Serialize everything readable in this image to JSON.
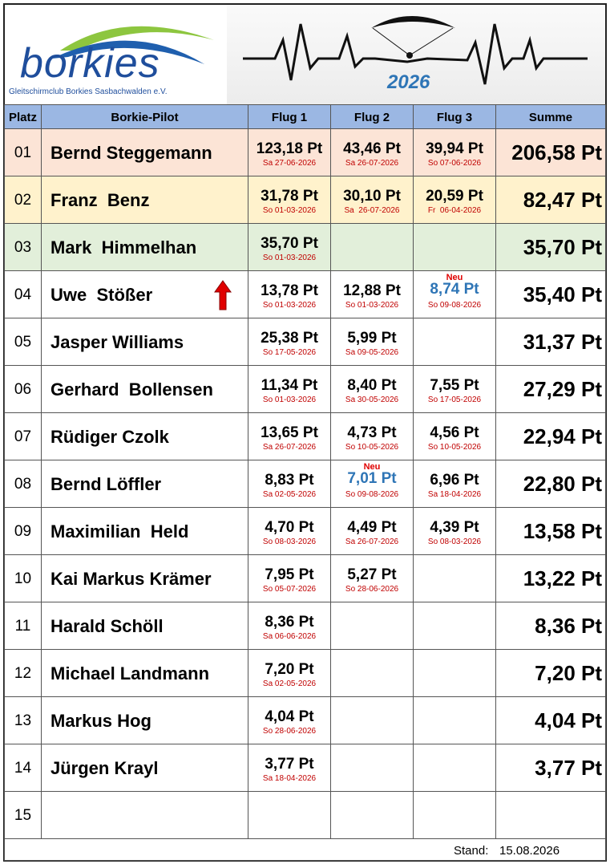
{
  "header": {
    "logo_text": "borkies",
    "club": "Gleitschirmclub Borkies Sasbachwalden e.V.",
    "year": "2026"
  },
  "table": {
    "columns": [
      "Platz",
      "Borkie-Pilot",
      "Flug 1",
      "Flug 2",
      "Flug 3",
      "Summe"
    ],
    "rows": [
      {
        "place": "01",
        "pilot": "Bernd Steggemann",
        "flights": [
          {
            "points": "123,18 Pt",
            "date": "Sa 27-06-2026"
          },
          {
            "points": "43,46 Pt",
            "date": "Sa 26-07-2026"
          },
          {
            "points": "39,94 Pt",
            "date": "So 07-06-2026"
          }
        ],
        "total": "206,58 Pt"
      },
      {
        "place": "02",
        "pilot": "Franz  Benz",
        "flights": [
          {
            "points": "31,78 Pt",
            "date": "So 01-03-2026"
          },
          {
            "points": "30,10 Pt",
            "date": "Sa  26-07-2026"
          },
          {
            "points": "20,59 Pt",
            "date": "Fr  06-04-2026"
          }
        ],
        "total": "82,47 Pt"
      },
      {
        "place": "03",
        "pilot": "Mark  Himmelhan",
        "flights": [
          {
            "points": "35,70 Pt",
            "date": "So 01-03-2026"
          }
        ],
        "total": "35,70 Pt"
      },
      {
        "place": "04",
        "pilot": "Uwe  Stößer",
        "flights": [
          {
            "points": "13,78 Pt",
            "date": "So 01-03-2026"
          },
          {
            "points": "12,88 Pt",
            "date": "So 01-03-2026"
          },
          {
            "badge": "Neu",
            "points": "8,74 Pt",
            "date": "So 09-08-2026"
          }
        ],
        "total": "35,40 Pt"
      },
      {
        "place": "05",
        "pilot": "Jasper Williams",
        "flights": [
          {
            "points": "25,38 Pt",
            "date": "So 17-05-2026"
          },
          {
            "points": "5,99 Pt",
            "date": "Sa 09-05-2026"
          }
        ],
        "total": "31,37 Pt"
      },
      {
        "place": "06",
        "pilot": "Gerhard  Bollensen",
        "flights": [
          {
            "points": "11,34 Pt",
            "date": "So 01-03-2026"
          },
          {
            "points": "8,40 Pt",
            "date": "Sa 30-05-2026"
          },
          {
            "points": "7,55 Pt",
            "date": "So 17-05-2026"
          }
        ],
        "total": "27,29 Pt"
      },
      {
        "place": "07",
        "pilot": "Rüdiger Czolk",
        "flights": [
          {
            "points": "13,65 Pt",
            "date": "Sa 26-07-2026"
          },
          {
            "points": "4,73 Pt",
            "date": "So 10-05-2026"
          },
          {
            "points": "4,56 Pt",
            "date": "So 10-05-2026"
          }
        ],
        "total": "22,94 Pt"
      },
      {
        "place": "08",
        "pilot": "Bernd Löffler",
        "flights": [
          {
            "points": "8,83 Pt",
            "date": "Sa 02-05-2026"
          },
          {
            "badge": "Neu",
            "points": "7,01 Pt",
            "date": "So 09-08-2026"
          },
          {
            "points": "6,96 Pt",
            "date": "Sa 18-04-2026"
          }
        ],
        "total": "22,80 Pt"
      },
      {
        "place": "09",
        "pilot": "Maximilian  Held",
        "flights": [
          {
            "points": "4,70 Pt",
            "date": "So 08-03-2026"
          },
          {
            "points": "4,49 Pt",
            "date": "Sa 26-07-2026"
          },
          {
            "points": "4,39 Pt",
            "date": "So 08-03-2026"
          }
        ],
        "total": "13,58 Pt"
      },
      {
        "place": "10",
        "pilot": "Kai Markus Krämer",
        "flights": [
          {
            "points": "7,95 Pt",
            "date": "So 05-07-2026"
          },
          {
            "points": "5,27 Pt",
            "date": "So 28-06-2026"
          }
        ],
        "total": "13,22 Pt"
      },
      {
        "place": "11",
        "pilot": "Harald Schöll",
        "flights": [
          {
            "points": "8,36 Pt",
            "date": "Sa 06-06-2026"
          }
        ],
        "total": "8,36 Pt"
      },
      {
        "place": "12",
        "pilot": "Michael Landmann",
        "flights": [
          {
            "points": "7,20 Pt",
            "date": "Sa 02-05-2026"
          }
        ],
        "total": "7,20 Pt"
      },
      {
        "place": "13",
        "pilot": "Markus Hog",
        "flights": [
          {
            "points": "4,04 Pt",
            "date": "So 28-06-2026"
          }
        ],
        "total": "4,04 Pt"
      },
      {
        "place": "14",
        "pilot": "Jürgen Krayl",
        "flights": [
          {
            "points": "3,77 Pt",
            "date": "Sa 18-04-2026"
          }
        ],
        "total": "3,77 Pt"
      },
      {
        "place": "15",
        "flights": []
      }
    ]
  },
  "footer": {
    "label": "Stand:",
    "date": "15.08.2026"
  }
}
